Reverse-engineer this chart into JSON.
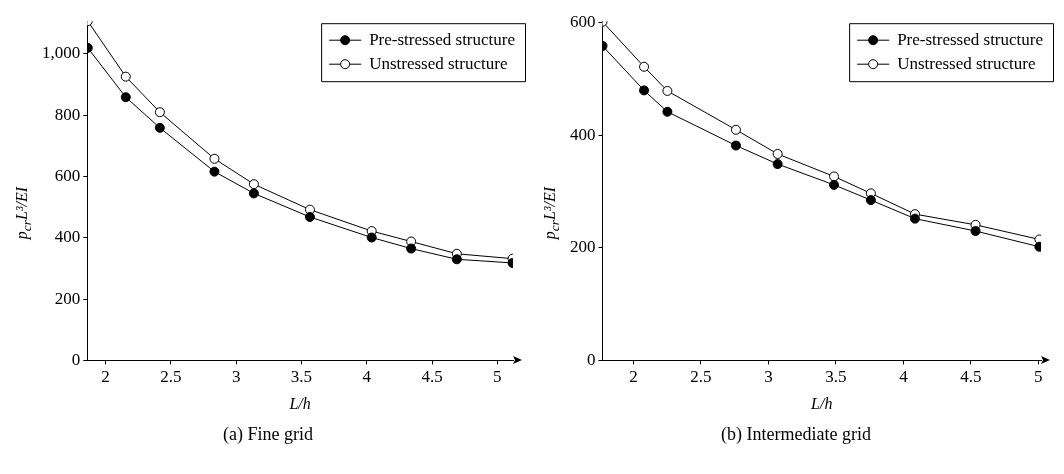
{
  "chart_data": [
    {
      "type": "line",
      "title": "(a) Fine grid",
      "xlabel": "L/h",
      "ylabel": "p$_{cr}$L³/EI",
      "xlim": [
        1.86,
        5.12
      ],
      "ylim": [
        0,
        1107
      ],
      "xticks": [
        2,
        2.5,
        3,
        3.5,
        4,
        4.5,
        5
      ],
      "yticks": [
        0,
        200,
        400,
        600,
        800,
        {
          "value": 1000,
          "label": "1,000"
        }
      ],
      "grid": false,
      "legend": "top right",
      "marker": "circle",
      "line_style": "solid",
      "series": [
        {
          "name": "Pre-stressed structure",
          "color": "#000000",
          "x": [
            1.864,
            2.155,
            2.416,
            2.834,
            3.136,
            3.565,
            4.038,
            4.34,
            4.69,
            5.117
          ],
          "values": [
            1020,
            859,
            759,
            616,
            545,
            468,
            401,
            365,
            330,
            318
          ]
        },
        {
          "name": "Unstressed structure",
          "color": "#000000",
          "x": [
            1.864,
            2.155,
            2.416,
            2.834,
            3.136,
            3.565,
            4.038,
            4.34,
            4.69,
            5.117
          ],
          "values": [
            1107,
            926,
            810,
            658,
            575,
            492,
            422,
            388,
            348,
            332
          ]
        }
      ]
    },
    {
      "type": "line",
      "title": "(b) Intermediate grid",
      "xlabel": "L/h",
      "ylabel": "p$_{cr}$L³/EI",
      "xlim": [
        1.77,
        5.02
      ],
      "ylim": [
        0,
        603
      ],
      "xticks": [
        2,
        2.5,
        3,
        3.5,
        4,
        4.5,
        5
      ],
      "yticks": [
        0,
        200,
        400,
        600
      ],
      "grid": false,
      "legend": "top right",
      "marker": "circle",
      "line_style": "solid",
      "series": [
        {
          "name": "Pre-stressed structure",
          "color": "#000000",
          "x": [
            1.77,
            2.078,
            2.251,
            2.759,
            3.068,
            3.486,
            3.759,
            4.086,
            4.535,
            5.008
          ],
          "values": [
            559,
            480,
            442,
            382,
            349,
            312,
            285,
            252,
            230,
            202
          ]
        },
        {
          "name": "Unstressed structure",
          "color": "#000000",
          "x": [
            1.77,
            2.078,
            2.251,
            2.759,
            3.068,
            3.486,
            3.759,
            4.086,
            4.535,
            5.008
          ],
          "values": [
            602,
            522,
            479,
            410,
            367,
            327,
            297,
            260,
            241,
            215
          ]
        }
      ]
    }
  ]
}
